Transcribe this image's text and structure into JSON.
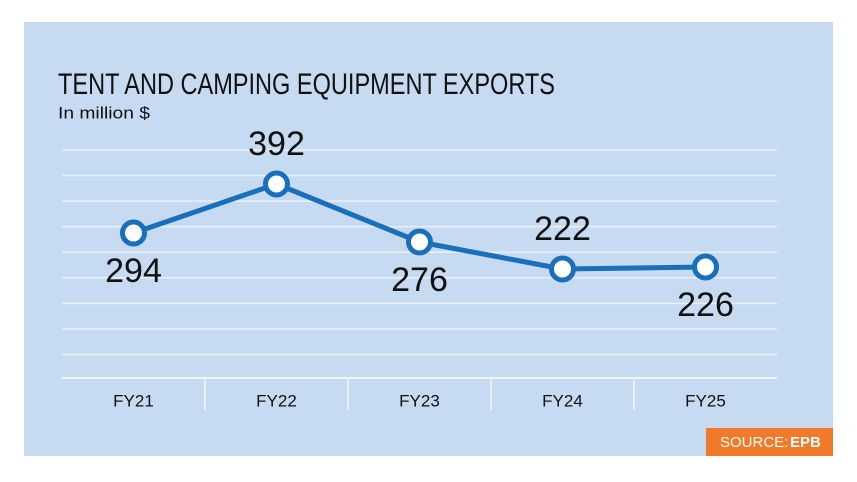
{
  "chart_data": {
    "type": "line",
    "title": "TENT AND CAMPING EQUIPMENT EXPORTS",
    "subtitle": "In million $",
    "categories": [
      "FY21",
      "FY22",
      "FY23",
      "FY24",
      "FY25"
    ],
    "values": [
      294,
      392,
      276,
      222,
      226
    ],
    "color": "#1a6fba",
    "label_position": [
      "below",
      "above",
      "below",
      "above",
      "below"
    ],
    "ylim": [
      0,
      460
    ],
    "grid": true,
    "source_label": "SOURCE:",
    "source": "EPB"
  }
}
